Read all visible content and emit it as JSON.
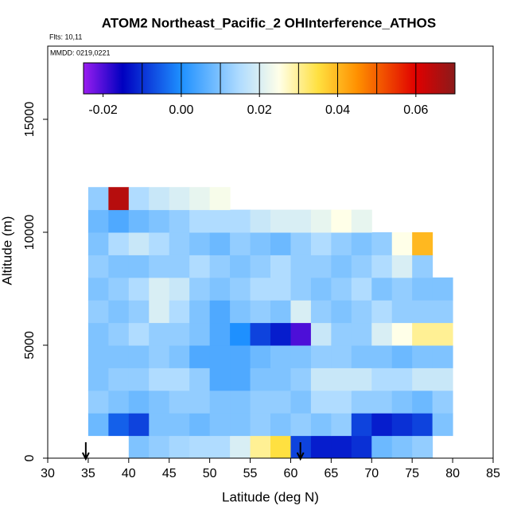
{
  "chart_data": {
    "type": "heatmap",
    "title": "ATOM2 Northeast_Pacific_2 OHInterference_ATHOS",
    "annotations": [
      "Flts: 10,11",
      "MMDD: 0219,0221"
    ],
    "xlabel": "Latitude (deg N)",
    "ylabel": "Altitude (m)",
    "xlim": [
      30,
      85
    ],
    "xticks": [
      30,
      35,
      40,
      45,
      50,
      55,
      60,
      65,
      70,
      75,
      80,
      85
    ],
    "ylim": [
      0,
      18240
    ],
    "yticks": [
      0,
      5000,
      10000,
      15000
    ],
    "xbins": [
      35,
      37.5,
      40,
      42.5,
      45,
      47.5,
      50,
      52.5,
      55,
      57.5,
      60,
      62.5,
      65,
      67.5,
      70,
      72.5,
      75,
      77.5,
      80
    ],
    "ybins": [
      0,
      1000,
      2000,
      3000,
      4000,
      5000,
      6000,
      7000,
      8000,
      9000,
      10000,
      11000,
      12000
    ],
    "z": [
      [
        null,
        null,
        0.01,
        0.012,
        0.014,
        0.015,
        0.015,
        0.02,
        0.03,
        0.035,
        -0.008,
        -0.012,
        -0.012,
        -0.01,
        0.008,
        0.01,
        0.012,
        null
      ],
      [
        0.008,
        -0.005,
        -0.008,
        0.01,
        0.01,
        0.008,
        0.01,
        0.01,
        0.012,
        0.01,
        0.012,
        0.01,
        0.012,
        -0.008,
        -0.012,
        -0.01,
        -0.008,
        0.01
      ],
      [
        0.012,
        0.01,
        0.008,
        0.01,
        0.012,
        0.012,
        0.01,
        0.01,
        0.012,
        0.012,
        0.01,
        0.015,
        0.015,
        0.012,
        0.012,
        0.01,
        0.008,
        0.012
      ],
      [
        0.01,
        0.012,
        0.012,
        0.015,
        0.015,
        0.012,
        0.005,
        0.005,
        0.01,
        0.01,
        0.012,
        0.018,
        0.018,
        0.018,
        0.015,
        0.015,
        0.018,
        0.018
      ],
      [
        0.01,
        0.01,
        0.01,
        0.012,
        0.01,
        0.005,
        0.005,
        0.005,
        0.008,
        0.01,
        0.01,
        0.012,
        0.012,
        0.01,
        0.01,
        0.008,
        0.01,
        0.01
      ],
      [
        0.01,
        0.012,
        0.015,
        0.012,
        0.012,
        0.01,
        0.005,
        0.0,
        -0.008,
        -0.012,
        -0.02,
        0.018,
        0.012,
        0.012,
        0.02,
        0.025,
        0.03,
        0.03
      ],
      [
        0.012,
        0.01,
        0.012,
        0.02,
        0.015,
        0.01,
        0.005,
        0.01,
        0.012,
        0.01,
        0.02,
        0.012,
        0.01,
        0.012,
        0.015,
        0.012,
        0.012,
        0.012
      ],
      [
        0.01,
        0.012,
        0.015,
        0.02,
        0.018,
        0.012,
        0.01,
        0.012,
        0.015,
        0.015,
        0.012,
        0.01,
        0.012,
        0.015,
        0.01,
        0.012,
        0.01,
        0.01
      ],
      [
        0.012,
        0.01,
        0.01,
        0.012,
        0.012,
        0.015,
        0.012,
        0.01,
        0.012,
        0.015,
        0.012,
        0.012,
        0.01,
        0.012,
        0.015,
        0.02,
        0.012,
        null
      ],
      [
        0.01,
        0.015,
        0.018,
        0.015,
        0.012,
        0.01,
        0.008,
        0.012,
        0.01,
        0.008,
        0.012,
        0.015,
        0.012,
        0.01,
        0.012,
        0.025,
        0.04,
        null
      ],
      [
        0.008,
        0.005,
        0.008,
        0.01,
        0.012,
        0.015,
        0.015,
        0.015,
        0.018,
        0.02,
        0.02,
        0.022,
        0.025,
        0.022,
        null,
        null,
        null,
        null
      ],
      [
        0.012,
        0.065,
        0.015,
        0.018,
        0.02,
        0.022,
        0.024,
        null,
        null,
        null,
        null,
        null,
        null,
        null,
        null,
        null,
        null,
        null
      ]
    ],
    "clim": [
      -0.025,
      0.07
    ],
    "colorscale": [
      [
        -0.025,
        "#9a1df0"
      ],
      [
        -0.015,
        "#0000c0"
      ],
      [
        0,
        "#1e90ff"
      ],
      [
        0.015,
        "#b0dcff"
      ],
      [
        0.025,
        "#ffffe8"
      ],
      [
        0.035,
        "#ffe040"
      ],
      [
        0.045,
        "#ff9000"
      ],
      [
        0.06,
        "#e00000"
      ],
      [
        0.07,
        "#8b1a1a"
      ]
    ],
    "colorbar_breaks": [
      -0.01,
      0,
      0.01,
      0.02,
      0.03,
      0.04,
      0.05,
      0.06
    ],
    "colorbar_ticks": [
      -0.02,
      {
        "value": 0,
        "label": "0.00"
      },
      0.02,
      0.04,
      0.06
    ],
    "flight_markers_lat": [
      34.7,
      61.2
    ]
  }
}
